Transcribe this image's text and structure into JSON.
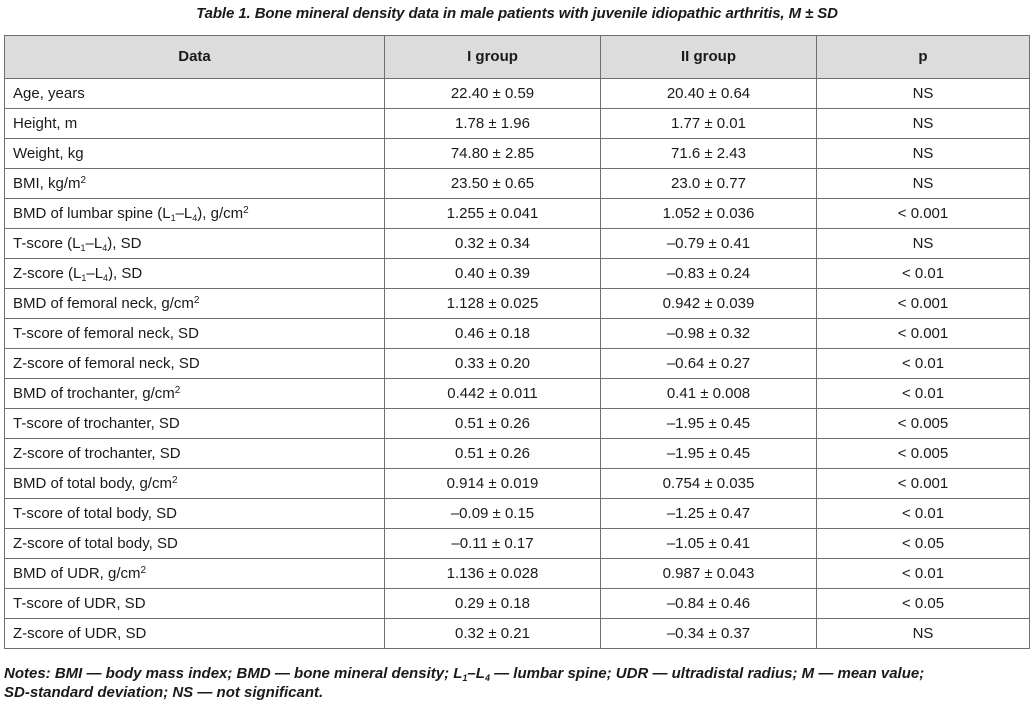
{
  "caption": "Table 1. Bone mineral density data in male patients with juvenile idiopathic arthritis, M ± SD",
  "columns": [
    "Data",
    "I group",
    "II group",
    "p"
  ],
  "rows": [
    {
      "label": [
        "Age, years"
      ],
      "g1": "22.40 ± 0.59",
      "g2": "20.40 ± 0.64",
      "p": "NS"
    },
    {
      "label": [
        "Height, m"
      ],
      "g1": "1.78 ± 1.96",
      "g2": "1.77 ± 0.01",
      "p": "NS"
    },
    {
      "label": [
        "Weight, kg"
      ],
      "g1": "74.80 ± 2.85",
      "g2": "71.6 ± 2.43",
      "p": "NS"
    },
    {
      "label": [
        "BMI, kg/m",
        "^2"
      ],
      "g1": "23.50 ± 0.65",
      "g2": "23.0 ± 0.77",
      "p": "NS"
    },
    {
      "label": [
        "BMD of lumbar spine (L",
        "_1",
        "–L",
        "_4",
        "), g/cm",
        "^2"
      ],
      "g1": "1.255 ± 0.041",
      "g2": "1.052 ± 0.036",
      "p": "< 0.001"
    },
    {
      "label": [
        "T-score (L",
        "_1",
        "–L",
        "_4",
        "), SD"
      ],
      "g1": "0.32 ± 0.34",
      "g2": "–0.79 ± 0.41",
      "p": "NS"
    },
    {
      "label": [
        "Z-score (L",
        "_1",
        "–L",
        "_4",
        "), SD"
      ],
      "g1": "0.40 ± 0.39",
      "g2": "–0.83 ± 0.24",
      "p": "< 0.01"
    },
    {
      "label": [
        "BMD of femoral neck, g/cm",
        "^2"
      ],
      "g1": "1.128 ± 0.025",
      "g2": "0.942 ± 0.039",
      "p": "< 0.001"
    },
    {
      "label": [
        "T-score of femoral neck, SD"
      ],
      "g1": "0.46 ± 0.18",
      "g2": "–0.98 ± 0.32",
      "p": "< 0.001"
    },
    {
      "label": [
        "Z-score of femoral neck, SD"
      ],
      "g1": "0.33 ± 0.20",
      "g2": "–0.64 ± 0.27",
      "p": "< 0.01"
    },
    {
      "label": [
        "BMD of trochanter, g/cm",
        "^2"
      ],
      "g1": "0.442 ± 0.011",
      "g2": "0.41 ± 0.008",
      "p": "< 0.01"
    },
    {
      "label": [
        "T-score of trochanter, SD"
      ],
      "g1": "0.51 ± 0.26",
      "g2": "–1.95 ± 0.45",
      "p": "< 0.005"
    },
    {
      "label": [
        "Z-score of trochanter, SD"
      ],
      "g1": "0.51 ± 0.26",
      "g2": "–1.95 ± 0.45",
      "p": "< 0.005"
    },
    {
      "label": [
        "BMD of total body, g/cm",
        "^2"
      ],
      "g1": "0.914 ± 0.019",
      "g2": "0.754 ± 0.035",
      "p": "< 0.001"
    },
    {
      "label": [
        "T-score of  total body, SD"
      ],
      "g1": "–0.09 ± 0.15",
      "g2": "–1.25 ± 0.47",
      "p": "< 0.01"
    },
    {
      "label": [
        "Z-score of total body, SD"
      ],
      "g1": "–0.11 ± 0.17",
      "g2": "–1.05 ± 0.41",
      "p": "< 0.05"
    },
    {
      "label": [
        "BMD of UDR, g/cm",
        "^2"
      ],
      "g1": "1.136 ± 0.028",
      "g2": "0.987 ± 0.043",
      "p": "< 0.01"
    },
    {
      "label": [
        "T-score of UDR, SD"
      ],
      "g1": "0.29 ± 0.18",
      "g2": "–0.84 ± 0.46",
      "p": "< 0.05"
    },
    {
      "label": [
        "Z-score of UDR, SD"
      ],
      "g1": "0.32 ± 0.21",
      "g2": "–0.34 ± 0.37",
      "p": "NS"
    }
  ],
  "notes": {
    "line1": [
      "Notes: BMI — body mass index; BMD — bone mineral density; L",
      "_1",
      "–L",
      "_4",
      " — lumbar spine; UDR — ultradistal radius; M — mean value;"
    ],
    "line2": [
      "SD-standard deviation; NS — not significant."
    ]
  },
  "colors": {
    "header_bg": "#dcdcdc",
    "border": "#6f6f6f",
    "text": "#1a1a1a"
  }
}
